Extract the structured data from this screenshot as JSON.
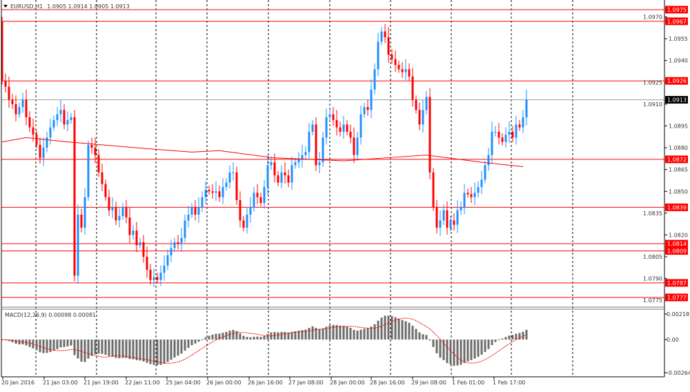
{
  "header": {
    "symbol": "EURUSD,H1",
    "ohlc": "1.0905 1.0914 1.0905 1.0913"
  },
  "macd_header": "MACD(12,26,9) 0.00098 0.00081",
  "colors": {
    "bull": "#1e90ff",
    "bear": "#ff0000",
    "level": "#ff0000",
    "current": "#8fa0b0",
    "ma": "#ff0000",
    "macd_hist": "#6b6b6b",
    "macd_signal": "#ff0000"
  },
  "chart_data": [
    {
      "type": "candlestick",
      "symbol": "EURUSD",
      "timeframe": "H1",
      "ylim": [
        1.077,
        1.0983
      ],
      "y_ticks": [
        "1.0970",
        "1.0955",
        "1.0940",
        "1.0925",
        "1.0910",
        "1.0895",
        "1.0880",
        "1.0865",
        "1.0850",
        "1.0835",
        "1.0820",
        "1.0805",
        "1.0790",
        "1.0775"
      ],
      "x_tick_labels": [
        "20 Jan 2016",
        "21 Jan 03:00",
        "21 Jan 19:00",
        "22 Jan 11:00",
        "25 Jan 04:00",
        "26 Jan 00:00",
        "26 Jan 16:00",
        "27 Jan 08:00",
        "28 Jan 00:00",
        "28 Jan 16:00",
        "29 Jan 08:00",
        "1 Feb 01:00",
        "1 Feb 17:00"
      ],
      "first_open": 1.0967,
      "closes": [
        1.0926,
        1.0922,
        1.0913,
        1.091,
        1.0903,
        1.0908,
        1.0913,
        1.0901,
        1.0894,
        1.0889,
        1.0882,
        1.0873,
        1.088,
        1.0887,
        1.0894,
        1.0899,
        1.0903,
        1.0906,
        1.0896,
        1.0899,
        1.0901,
        1.0792,
        1.0834,
        1.0825,
        1.0846,
        1.0882,
        1.088,
        1.0875,
        1.0863,
        1.0855,
        1.0846,
        1.0837,
        1.0839,
        1.083,
        1.0833,
        1.0839,
        1.0832,
        1.082,
        1.0823,
        1.0813,
        1.0815,
        1.0805,
        1.0796,
        1.0789,
        1.0791,
        1.0789,
        1.0794,
        1.0799,
        1.0806,
        1.0811,
        1.0815,
        1.0814,
        1.0818,
        1.083,
        1.0834,
        1.0839,
        1.0834,
        1.0839,
        1.0846,
        1.0851,
        1.085,
        1.0849,
        1.085,
        1.0846,
        1.0853,
        1.0856,
        1.0863,
        1.0863,
        1.0844,
        1.083,
        1.0825,
        1.0834,
        1.0839,
        1.0849,
        1.0846,
        1.0842,
        1.0853,
        1.0868,
        1.087,
        1.0861,
        1.0856,
        1.0863,
        1.0861,
        1.0856,
        1.0868,
        1.087,
        1.0872,
        1.0875,
        1.0877,
        1.0891,
        1.0896,
        1.0868,
        1.087,
        1.0887,
        1.0901,
        1.0903,
        1.0899,
        1.0894,
        1.0891,
        1.0896,
        1.0891,
        1.0887,
        1.0875,
        1.0887,
        1.0903,
        1.0908,
        1.0906,
        1.092,
        1.0934,
        1.0953,
        1.096,
        1.0956,
        1.0944,
        1.0941,
        1.0937,
        1.0934,
        1.0932,
        1.0934,
        1.0929,
        1.0913,
        1.0906,
        1.0896,
        1.0906,
        1.0915,
        1.0863,
        1.0839,
        1.0825,
        1.083,
        1.0837,
        1.0825,
        1.083,
        1.0827,
        1.0837,
        1.0839,
        1.0849,
        1.0848,
        1.0846,
        1.0849,
        1.0853,
        1.0858,
        1.0868,
        1.0875,
        1.0891,
        1.0891,
        1.0887,
        1.0884,
        1.0889,
        1.0891,
        1.0887,
        1.0896,
        1.0894,
        1.0901,
        1.0913
      ],
      "moving_average": [
        [
          0,
          1.0884
        ],
        [
          7,
          1.0887
        ],
        [
          19,
          1.0884
        ],
        [
          39,
          1.088
        ],
        [
          55,
          1.0877
        ],
        [
          63,
          1.0878
        ],
        [
          79,
          1.0873
        ],
        [
          99,
          1.0871
        ],
        [
          111,
          1.0873
        ],
        [
          123,
          1.0875
        ],
        [
          139,
          1.087
        ],
        [
          151,
          1.0867
        ]
      ],
      "levels": [
        "1.0975",
        "1.0967",
        "1.0926",
        "1.0872",
        "1.0839",
        "1.0814",
        "1.0809",
        "1.0787",
        "1.0777"
      ],
      "current_price": "1.0913"
    },
    {
      "type": "macd",
      "params": [
        12,
        26,
        9
      ],
      "main": 0.00098,
      "signal": 0.00081,
      "y_ticks": [
        "0.00218",
        "0.00",
        "-0.00264"
      ]
    }
  ]
}
